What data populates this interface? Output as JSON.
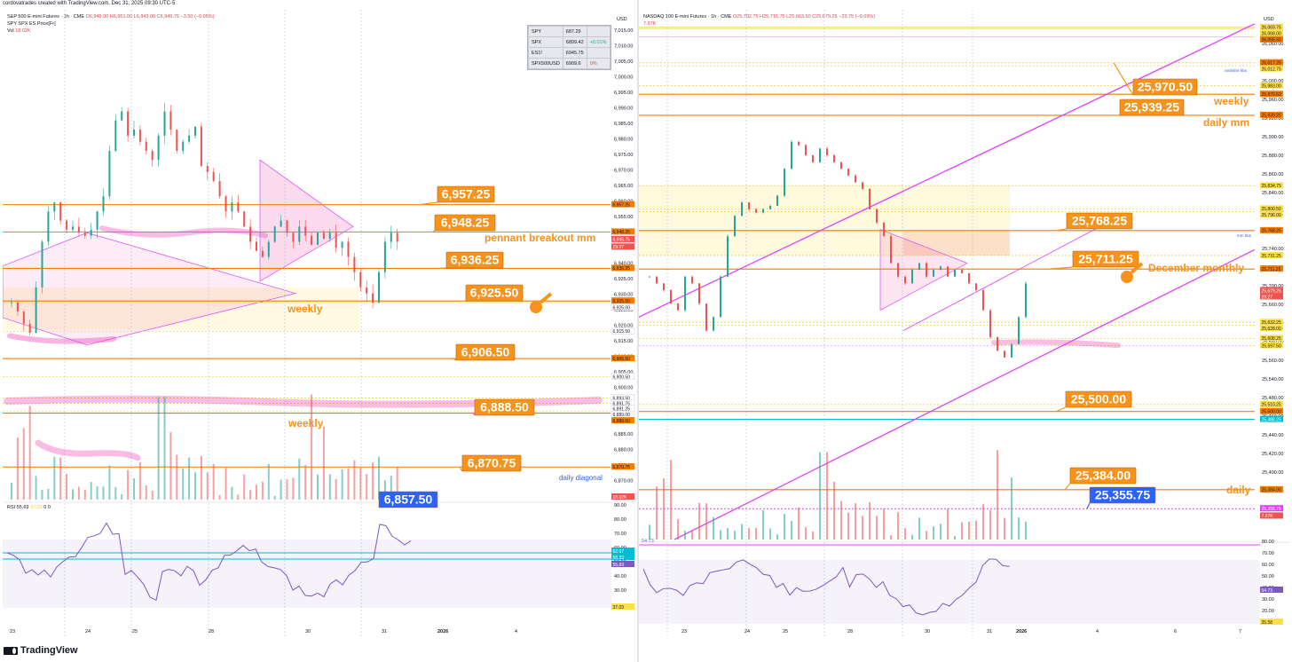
{
  "credit": "cordovatrades created with TradingView.com, Dec 31, 2025 09:30 UTC-5",
  "brand": "TradingView",
  "colors": {
    "orange": "#f7931a",
    "line_orange": "#f57c00",
    "magenta": "#e040fb",
    "blue": "#2962ff",
    "cyan": "#00bcd4",
    "purple": "#7e57c2",
    "up": "#26a69a",
    "down": "#ef5350",
    "yellow": "#fde047"
  },
  "left": {
    "title1": "S&P 500 E-mini Futures · 1h · CME",
    "ohlc": "O6,949.00 H6,951.00 L6,943.00 C6,945.75 −3.50 (−0.05%)",
    "title2": "SPY SPX ES Price[Fr]",
    "vol_label": "Vol",
    "vol_value": "18.02K",
    "rsi_label": "RSI 55.69",
    "rsi_extra": "37.03",
    "rsi_zeros": "0  0",
    "axis_currency": "USD",
    "quote_table": [
      {
        "sym": "SPY",
        "val": "687.29",
        "chg": ""
      },
      {
        "sym": "SPX",
        "val": "6899.42",
        "chg": "+0.01%"
      },
      {
        "sym": "ES1!",
        "val": "6945.75",
        "chg": ""
      },
      {
        "sym": "SPX500USD",
        "val": "6909.6",
        "chg": "0%"
      }
    ],
    "x_labels": [
      "23",
      "24",
      "25",
      "28",
      "30",
      "31",
      "2026",
      "4"
    ],
    "price_ticks": [
      "7,015.00",
      "7,010.00",
      "7,005.00",
      "7,000.00",
      "6,995.00",
      "6,990.00",
      "6,985.00",
      "6,980.00",
      "6,975.00",
      "6,970.00",
      "6,965.00",
      "6,960.00",
      "6,955.00",
      "6,950.00",
      "6,945.00",
      "6,940.00",
      "6,935.00",
      "6,930.00",
      "6,925.00",
      "6,920.00",
      "6,915.00",
      "6,910.00",
      "6,905.00",
      "6,900.00",
      "6,895.00",
      "6,890.00",
      "6,885.00",
      "6,880.00",
      "6,875.00",
      "6,870.00",
      "6,865.00"
    ],
    "rsi_ticks": [
      "90.00",
      "80.00",
      "70.00",
      "60.00",
      "50.00",
      "40.00",
      "30.00"
    ],
    "axis_tags": [
      {
        "text": "6,957.25",
        "kind": "orange"
      },
      {
        "text": "6,948.25",
        "kind": "orange"
      },
      {
        "text": "6,945.75",
        "kind": "red"
      },
      {
        "text": "29:27",
        "kind": "red"
      },
      {
        "text": "6,936.25",
        "kind": "orange"
      },
      {
        "text": "6,925.50",
        "kind": "orange"
      },
      {
        "text": "6,925.00",
        "kind": "plain"
      },
      {
        "text": "6,915.50",
        "kind": "plain"
      },
      {
        "text": "6,906.50",
        "kind": "orange"
      },
      {
        "text": "6,900.50",
        "kind": "plain"
      },
      {
        "text": "6,893.50",
        "kind": "plain"
      },
      {
        "text": "6,891.75",
        "kind": "plain"
      },
      {
        "text": "6,891.25",
        "kind": "plain"
      },
      {
        "text": "6,889.00",
        "kind": "plain"
      },
      {
        "text": "6,888.50",
        "kind": "orange"
      },
      {
        "text": "6,870.75",
        "kind": "orange"
      },
      {
        "text": "18.02K",
        "kind": "red"
      }
    ],
    "rsi_tags": [
      {
        "text": "62.07",
        "kind": "cyan"
      },
      {
        "text": "58.33",
        "kind": "cyan"
      },
      {
        "text": "55.69",
        "kind": "purple"
      },
      {
        "text": "37.03",
        "kind": "yellow"
      }
    ],
    "callouts": [
      {
        "text": "6,957.25",
        "kind": "orange"
      },
      {
        "text": "6,948.25",
        "kind": "orange"
      },
      {
        "text": "6,936.25",
        "kind": "orange"
      },
      {
        "text": "6,925.50",
        "kind": "orange"
      },
      {
        "text": "6,906.50",
        "kind": "orange"
      },
      {
        "text": "6,888.50",
        "kind": "orange"
      },
      {
        "text": "6,870.75",
        "kind": "orange"
      },
      {
        "text": "6,857.50",
        "kind": "blue"
      }
    ],
    "notes": [
      {
        "text": "pennant breakout mm",
        "color": "orange"
      },
      {
        "text": "weekly",
        "color": "orange"
      },
      {
        "text": "weekly",
        "color": "orange"
      },
      {
        "text": "daily diagonal",
        "color": "blue"
      }
    ]
  },
  "right": {
    "title1": "NASDAQ 100 E-mini Futures · 1h · CME",
    "ohlc": "O25,702.75 H25,716.75 L25,663.50 C25,679.25 −23.75 (−0.09%)",
    "vol_value": "7.97K",
    "rsi_value": "54.73",
    "axis_currency": "USD",
    "x_labels": [
      "23",
      "24",
      "25",
      "28",
      "30",
      "31",
      "2026",
      "4",
      "6",
      "7"
    ],
    "price_ticks": [
      "26,060.00",
      "26,040.00",
      "26,000.00",
      "25,960.00",
      "25,920.00",
      "25,900.00",
      "25,880.00",
      "25,860.00",
      "25,840.00",
      "25,820.00",
      "25,780.00",
      "25,740.00",
      "25,720.00",
      "25,700.00",
      "25,660.00",
      "25,640.00",
      "25,580.00",
      "25,560.00",
      "25,540.00",
      "25,480.00",
      "25,460.00",
      "25,440.00",
      "25,420.00",
      "25,400.00",
      "25,360.00",
      "25,320.00"
    ],
    "rsi_ticks": [
      "80.00",
      "70.00",
      "60.00",
      "50.00",
      "40.00",
      "30.00",
      "20.00"
    ],
    "axis_tags": [
      {
        "text": "26,069.75",
        "kind": "yellow"
      },
      {
        "text": "26,068.00",
        "kind": "yellow"
      },
      {
        "text": "26,055.50",
        "kind": "orange"
      },
      {
        "text": "26,017.25",
        "kind": "orange"
      },
      {
        "text": "26,012.75",
        "kind": "yellow"
      },
      {
        "text": "25,983.00",
        "kind": "yellow"
      },
      {
        "text": "25,970.50",
        "kind": "orange"
      },
      {
        "text": "25,939.25",
        "kind": "orange"
      },
      {
        "text": "25,834.75",
        "kind": "yellow"
      },
      {
        "text": "25,800.50",
        "kind": "yellow"
      },
      {
        "text": "25,796.00",
        "kind": "yellow"
      },
      {
        "text": "25,768.25",
        "kind": "orange"
      },
      {
        "text": "25,731.25",
        "kind": "yellow"
      },
      {
        "text": "25,711.25",
        "kind": "orange"
      },
      {
        "text": "25,679.25",
        "kind": "red"
      },
      {
        "text": "29:27",
        "kind": "red"
      },
      {
        "text": "25,632.25",
        "kind": "yellow"
      },
      {
        "text": "25,628.00",
        "kind": "yellow"
      },
      {
        "text": "25,608.25",
        "kind": "yellow"
      },
      {
        "text": "25,597.50",
        "kind": "yellow"
      },
      {
        "text": "25,510.25",
        "kind": "yellow"
      },
      {
        "text": "25,500.00",
        "kind": "orange"
      },
      {
        "text": "25,488.25",
        "kind": "cyan"
      },
      {
        "text": "25,384.00",
        "kind": "orange"
      },
      {
        "text": "25,355.75",
        "kind": "magenta"
      },
      {
        "text": "7.97K",
        "kind": "red"
      }
    ],
    "rsi_tags": [
      {
        "text": "54.73",
        "kind": "purple"
      },
      {
        "text": "35.58",
        "kind": "yellow"
      }
    ],
    "callouts": [
      {
        "text": "25,970.50",
        "kind": "orange"
      },
      {
        "text": "25,939.25",
        "kind": "orange"
      },
      {
        "text": "25,768.25",
        "kind": "orange"
      },
      {
        "text": "25,711.25",
        "kind": "orange"
      },
      {
        "text": "25,500.00",
        "kind": "orange"
      },
      {
        "text": "25,384.00",
        "kind": "orange"
      },
      {
        "text": "25,355.75",
        "kind": "blue"
      }
    ],
    "notes": [
      {
        "text": "weekly",
        "color": "orange"
      },
      {
        "text": "daily mm",
        "color": "orange"
      },
      {
        "text": "December monthly",
        "color": "orange"
      },
      {
        "text": "daily",
        "color": "orange"
      },
      {
        "text": "neckline hbs",
        "color": "blue"
      },
      {
        "text": "mm hbs",
        "color": "blue"
      }
    ]
  },
  "chart_data": [
    {
      "type": "candlestick",
      "title": "S&P 500 E-mini Futures · 1h · CME",
      "ylim": [
        6860,
        7018
      ],
      "levels": [
        6957.25,
        6948.25,
        6936.25,
        6925.5,
        6906.5,
        6888.5,
        6870.75
      ],
      "last": 6945.75,
      "rsi": 55.69,
      "volume": "18.02K"
    },
    {
      "type": "candlestick",
      "title": "NASDAQ 100 E-mini Futures · 1h · CME",
      "ylim": [
        25310,
        26080
      ],
      "levels": [
        25970.5,
        25939.25,
        25768.25,
        25711.25,
        25500.0,
        25384.0,
        25355.75
      ],
      "last": 25679.25,
      "rsi": 54.73,
      "volume": "7.97K"
    }
  ]
}
